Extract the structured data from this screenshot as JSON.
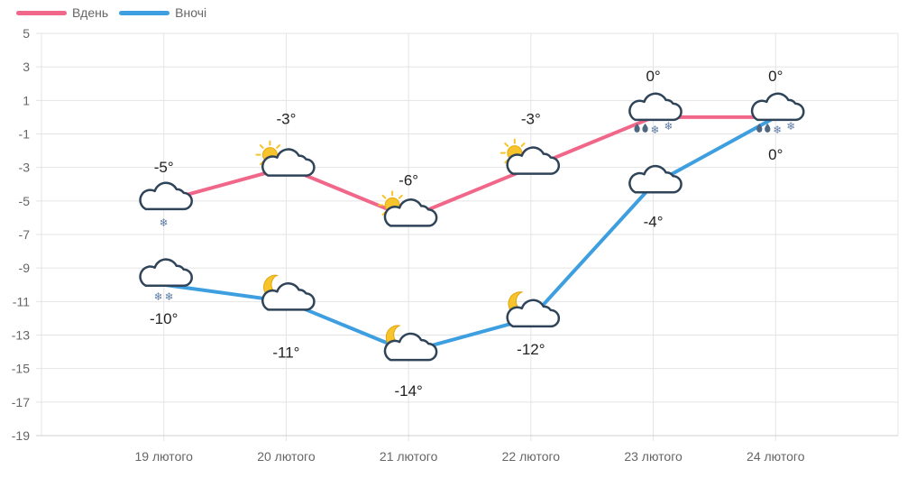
{
  "chart_data": {
    "type": "line",
    "categories": [
      "19 лютого",
      "20 лютого",
      "21 лютого",
      "22 лютого",
      "23 лютого",
      "24 лютого"
    ],
    "series": [
      {
        "name": "Вдень",
        "color": "#f0678a",
        "values": [
          -5,
          -3,
          -6,
          -3,
          0,
          0
        ],
        "labels": [
          "-5°",
          "-3°",
          "-6°",
          "-3°",
          "0°",
          "0°"
        ],
        "icons": [
          "cloud-snow-light-icon",
          "sun-cloud-icon",
          "sun-cloud-icon",
          "sun-cloud-icon",
          "cloud-rain-snow-icon",
          "cloud-rain-snow-icon"
        ]
      },
      {
        "name": "Вночі",
        "color": "#3d9ee0",
        "values": [
          -10,
          -11,
          -14,
          -12,
          -4,
          0
        ],
        "labels": [
          "-10°",
          "-11°",
          "-14°",
          "-12°",
          "-4°",
          "0°"
        ],
        "icons": [
          "cloud-snow-icon",
          "moon-cloud-icon",
          "moon-cloud-icon",
          "moon-cloud-icon",
          "cloud-icon",
          "none"
        ]
      }
    ],
    "y_ticks": [
      "5",
      "3",
      "1",
      "-1",
      "-3",
      "-5",
      "-7",
      "-9",
      "-11",
      "-13",
      "-15",
      "-17",
      "-19"
    ],
    "ylim": [
      -19,
      5
    ],
    "grid": true,
    "legend_position": "top-left"
  }
}
